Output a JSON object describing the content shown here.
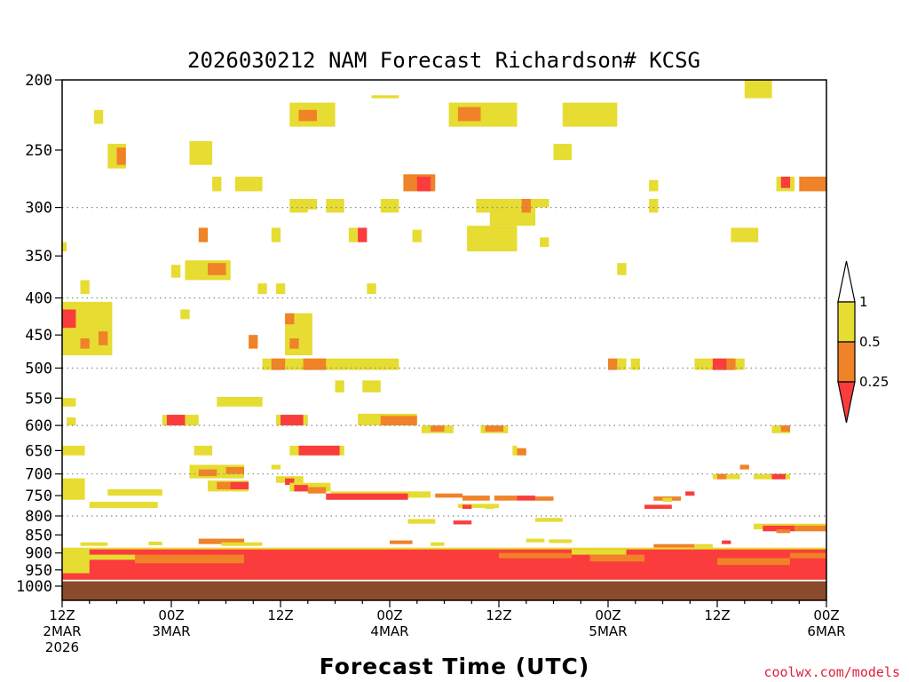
{
  "chart_data": {
    "type": "heatmap",
    "title": "2026030212 NAM Forecast Richardson# KCSG",
    "xlabel": "Forecast Time (UTC)",
    "ylabel": "",
    "x_units": "forecast hours from 2026-03-02 12Z",
    "xlim": [
      0,
      84
    ],
    "y_units": "pressure (hPa)",
    "ylim": [
      1000,
      200
    ],
    "y_ticks": [
      "200",
      "250",
      "300",
      "350",
      "400",
      "450",
      "500",
      "550",
      "600",
      "650",
      "700",
      "750",
      "800",
      "850",
      "900",
      "950",
      "1000"
    ],
    "grid_levels": [
      300,
      400,
      500,
      600,
      700,
      800
    ],
    "x_ticks": [
      {
        "hour": 0,
        "line1": "12Z",
        "line2": "2MAR",
        "line3": "2026"
      },
      {
        "hour": 12,
        "line1": "00Z",
        "line2": "3MAR",
        "line3": ""
      },
      {
        "hour": 24,
        "line1": "12Z",
        "line2": "",
        "line3": ""
      },
      {
        "hour": 36,
        "line1": "00Z",
        "line2": "4MAR",
        "line3": ""
      },
      {
        "hour": 48,
        "line1": "12Z",
        "line2": "",
        "line3": ""
      },
      {
        "hour": 60,
        "line1": "00Z",
        "line2": "5MAR",
        "line3": ""
      },
      {
        "hour": 72,
        "line1": "12Z",
        "line2": "",
        "line3": ""
      },
      {
        "hour": 84,
        "line1": "00Z",
        "line2": "6MAR",
        "line3": ""
      }
    ],
    "legend": {
      "placement": "right",
      "bins": [
        {
          "label": "1",
          "range": "> 1",
          "color": "#ffffff"
        },
        {
          "label": "0.5",
          "range": "0.5 - 1",
          "color": "#e6dc32"
        },
        {
          "label": "0.25",
          "range": "0.25 - 0.5",
          "color": "#f08228"
        },
        {
          "label": "",
          "range": "< 0.25",
          "color": "#fa3c3c"
        }
      ]
    },
    "terrain_color": "#8b4a2b",
    "surface_pressure": 985,
    "cells_format": [
      "hour_start",
      "hour_end",
      "pressure_top",
      "pressure_bottom",
      "category(1=0.5-1, 2=0.25-0.5, 3=<0.25)"
    ],
    "cells": [
      [
        34.0,
        37.0,
        210,
        212,
        1
      ],
      [
        3.5,
        4.5,
        220,
        230,
        1
      ],
      [
        25.0,
        30.0,
        215,
        232,
        1
      ],
      [
        26.0,
        28.0,
        220,
        228,
        2
      ],
      [
        42.5,
        50.0,
        215,
        232,
        1
      ],
      [
        43.5,
        46.0,
        218,
        228,
        2
      ],
      [
        55.0,
        61.0,
        215,
        232,
        1
      ],
      [
        75.0,
        78.0,
        200,
        212,
        1
      ],
      [
        5.0,
        7.0,
        245,
        265,
        1
      ],
      [
        6.0,
        7.0,
        248,
        262,
        2
      ],
      [
        14.0,
        16.5,
        243,
        262,
        1
      ],
      [
        54.0,
        56.0,
        245,
        258,
        1
      ],
      [
        16.5,
        17.5,
        272,
        285,
        1
      ],
      [
        19.0,
        22.0,
        272,
        285,
        1
      ],
      [
        37.5,
        41.0,
        270,
        285,
        2
      ],
      [
        39.0,
        40.5,
        272,
        285,
        3
      ],
      [
        78.5,
        80.5,
        272,
        285,
        1
      ],
      [
        79.0,
        80.0,
        272,
        282,
        3
      ],
      [
        81.0,
        84.0,
        272,
        285,
        2
      ],
      [
        64.5,
        65.5,
        275,
        285,
        1
      ],
      [
        25.0,
        27.0,
        292,
        305,
        1
      ],
      [
        26.5,
        28.0,
        292,
        302,
        1
      ],
      [
        29.0,
        31.0,
        292,
        305,
        1
      ],
      [
        35.0,
        37.0,
        292,
        305,
        1
      ],
      [
        45.5,
        47.0,
        292,
        305,
        1
      ],
      [
        47.0,
        52.0,
        292,
        318,
        1
      ],
      [
        50.5,
        51.5,
        292,
        305,
        2
      ],
      [
        52.0,
        53.5,
        292,
        300,
        1
      ],
      [
        64.5,
        65.5,
        292,
        305,
        1
      ],
      [
        0.0,
        0.5,
        335,
        345,
        1
      ],
      [
        15.0,
        16.0,
        320,
        335,
        2
      ],
      [
        23.0,
        24.0,
        320,
        335,
        1
      ],
      [
        31.5,
        32.5,
        320,
        335,
        1
      ],
      [
        32.5,
        33.5,
        320,
        335,
        3
      ],
      [
        38.5,
        39.5,
        322,
        335,
        1
      ],
      [
        44.5,
        50.0,
        318,
        345,
        1
      ],
      [
        52.5,
        53.5,
        330,
        340,
        1
      ],
      [
        73.5,
        76.5,
        320,
        335,
        1
      ],
      [
        12.0,
        13.0,
        360,
        375,
        1
      ],
      [
        13.5,
        18.5,
        355,
        378,
        1
      ],
      [
        16.0,
        18.0,
        358,
        372,
        2
      ],
      [
        61.0,
        62.0,
        358,
        372,
        1
      ],
      [
        2.0,
        3.0,
        378,
        395,
        1
      ],
      [
        21.5,
        22.5,
        382,
        395,
        1
      ],
      [
        23.5,
        24.5,
        382,
        395,
        1
      ],
      [
        33.5,
        34.5,
        382,
        395,
        1
      ],
      [
        0.0,
        5.5,
        405,
        480,
        1
      ],
      [
        0.0,
        1.5,
        415,
        440,
        3
      ],
      [
        2.0,
        3.0,
        455,
        470,
        2
      ],
      [
        4.0,
        5.0,
        445,
        465,
        2
      ],
      [
        13.0,
        14.0,
        415,
        428,
        1
      ],
      [
        24.5,
        27.5,
        420,
        480,
        1
      ],
      [
        24.5,
        25.5,
        420,
        435,
        2
      ],
      [
        25.0,
        26.0,
        455,
        470,
        2
      ],
      [
        20.5,
        21.5,
        450,
        470,
        2
      ],
      [
        22.0,
        37.0,
        485,
        503,
        1
      ],
      [
        23.0,
        24.5,
        485,
        503,
        2
      ],
      [
        26.5,
        29.0,
        485,
        503,
        2
      ],
      [
        60.0,
        61.5,
        485,
        503,
        2
      ],
      [
        61.0,
        62.0,
        485,
        503,
        1
      ],
      [
        62.5,
        63.5,
        485,
        503,
        1
      ],
      [
        69.5,
        75.0,
        485,
        503,
        1
      ],
      [
        71.5,
        73.5,
        485,
        503,
        3
      ],
      [
        73.0,
        74.0,
        485,
        503,
        2
      ],
      [
        30.0,
        31.0,
        520,
        540,
        1
      ],
      [
        33.0,
        35.0,
        520,
        540,
        1
      ],
      [
        0.0,
        1.5,
        550,
        565,
        1
      ],
      [
        17.0,
        22.0,
        548,
        565,
        1
      ],
      [
        11.0,
        15.0,
        580,
        600,
        1
      ],
      [
        11.5,
        13.5,
        580,
        600,
        3
      ],
      [
        23.5,
        27.0,
        580,
        600,
        1
      ],
      [
        24.0,
        26.5,
        580,
        600,
        3
      ],
      [
        32.5,
        39.0,
        578,
        600,
        1
      ],
      [
        35.0,
        39.0,
        582,
        600,
        2
      ],
      [
        39.5,
        43.0,
        600,
        615,
        1
      ],
      [
        40.5,
        42.0,
        600,
        612,
        2
      ],
      [
        46.0,
        49.0,
        600,
        615,
        1
      ],
      [
        46.5,
        48.5,
        600,
        612,
        2
      ],
      [
        78.0,
        80.0,
        600,
        615,
        1
      ],
      [
        79.0,
        80.0,
        600,
        612,
        2
      ],
      [
        0.5,
        1.5,
        585,
        600,
        1
      ],
      [
        0.0,
        2.5,
        640,
        660,
        1
      ],
      [
        14.5,
        16.5,
        640,
        660,
        1
      ],
      [
        25.0,
        31.0,
        640,
        660,
        1
      ],
      [
        26.0,
        30.5,
        640,
        660,
        3
      ],
      [
        49.5,
        50.0,
        640,
        660,
        1
      ],
      [
        50.0,
        51.0,
        645,
        660,
        2
      ],
      [
        14.0,
        20.0,
        680,
        710,
        1
      ],
      [
        15.0,
        17.0,
        690,
        705,
        2
      ],
      [
        18.0,
        20.0,
        685,
        700,
        2
      ],
      [
        23.0,
        24.0,
        680,
        690,
        1
      ],
      [
        71.5,
        74.5,
        700,
        712,
        1
      ],
      [
        72.0,
        73.0,
        700,
        712,
        2
      ],
      [
        74.5,
        75.5,
        680,
        690,
        2
      ],
      [
        76.0,
        80.0,
        700,
        712,
        1
      ],
      [
        78.0,
        79.5,
        700,
        712,
        3
      ],
      [
        0.0,
        2.5,
        710,
        760,
        1
      ],
      [
        5.0,
        11.0,
        735,
        750,
        1
      ],
      [
        16.0,
        20.5,
        715,
        740,
        1
      ],
      [
        17.0,
        18.5,
        718,
        735,
        2
      ],
      [
        18.5,
        20.5,
        718,
        735,
        3
      ],
      [
        23.5,
        26.5,
        705,
        720,
        1
      ],
      [
        24.5,
        25.5,
        710,
        725,
        3
      ],
      [
        25.0,
        29.5,
        720,
        740,
        1
      ],
      [
        25.5,
        27.0,
        725,
        740,
        3
      ],
      [
        27.0,
        29.0,
        730,
        745,
        2
      ],
      [
        29.5,
        40.5,
        740,
        755,
        1
      ],
      [
        29.0,
        38.0,
        745,
        760,
        3
      ],
      [
        41.0,
        44.0,
        745,
        755,
        2
      ],
      [
        44.0,
        47.0,
        750,
        762,
        2
      ],
      [
        47.5,
        50.0,
        750,
        762,
        2
      ],
      [
        50.0,
        52.0,
        750,
        762,
        3
      ],
      [
        52.0,
        54.0,
        752,
        762,
        2
      ],
      [
        65.0,
        68.0,
        752,
        762,
        2
      ],
      [
        66.0,
        67.0,
        755,
        765,
        1
      ],
      [
        68.5,
        69.5,
        740,
        750,
        3
      ],
      [
        3.0,
        10.5,
        765,
        780,
        1
      ],
      [
        5.0,
        7.0,
        770,
        780,
        1
      ],
      [
        43.5,
        48.0,
        770,
        780,
        1
      ],
      [
        44.0,
        45.0,
        772,
        782,
        3
      ],
      [
        46.5,
        47.5,
        772,
        782,
        1
      ],
      [
        64.0,
        67.0,
        772,
        782,
        3
      ],
      [
        38.0,
        41.0,
        808,
        820,
        1
      ],
      [
        43.0,
        45.0,
        812,
        822,
        3
      ],
      [
        52.0,
        55.0,
        805,
        815,
        1
      ],
      [
        76.0,
        84.0,
        820,
        835,
        1
      ],
      [
        77.0,
        80.5,
        825,
        840,
        3
      ],
      [
        80.5,
        84.0,
        825,
        840,
        2
      ],
      [
        78.5,
        80.0,
        835,
        845,
        2
      ],
      [
        2.0,
        5.0,
        870,
        880,
        1
      ],
      [
        9.5,
        11.0,
        868,
        878,
        1
      ],
      [
        15.0,
        20.0,
        860,
        875,
        2
      ],
      [
        17.5,
        22.0,
        870,
        880,
        1
      ],
      [
        36.0,
        38.5,
        865,
        875,
        2
      ],
      [
        40.5,
        42.0,
        870,
        880,
        1
      ],
      [
        51.0,
        53.0,
        860,
        870,
        1
      ],
      [
        53.5,
        56.0,
        862,
        872,
        1
      ],
      [
        65.0,
        69.5,
        875,
        885,
        2
      ],
      [
        69.5,
        71.5,
        875,
        885,
        1
      ],
      [
        72.5,
        73.5,
        865,
        875,
        3
      ],
      [
        0.0,
        84.0,
        885,
        965,
        1
      ],
      [
        3.0,
        84.0,
        890,
        975,
        3
      ],
      [
        18.0,
        28.0,
        895,
        925,
        3
      ],
      [
        36.0,
        50.0,
        895,
        930,
        3
      ],
      [
        44.0,
        58.0,
        920,
        960,
        3
      ],
      [
        62.0,
        76.0,
        915,
        955,
        3
      ],
      [
        8.0,
        20.0,
        905,
        930,
        2
      ],
      [
        48.0,
        56.0,
        900,
        915,
        2
      ],
      [
        58.0,
        64.0,
        905,
        925,
        2
      ],
      [
        72.0,
        80.0,
        915,
        935,
        2
      ],
      [
        80.0,
        84.0,
        900,
        915,
        2
      ],
      [
        1.0,
        8.0,
        905,
        920,
        1
      ],
      [
        56.0,
        62.0,
        890,
        905,
        1
      ],
      [
        0.0,
        84.0,
        960,
        980,
        3
      ]
    ]
  },
  "credit": "coolwx.com/models"
}
